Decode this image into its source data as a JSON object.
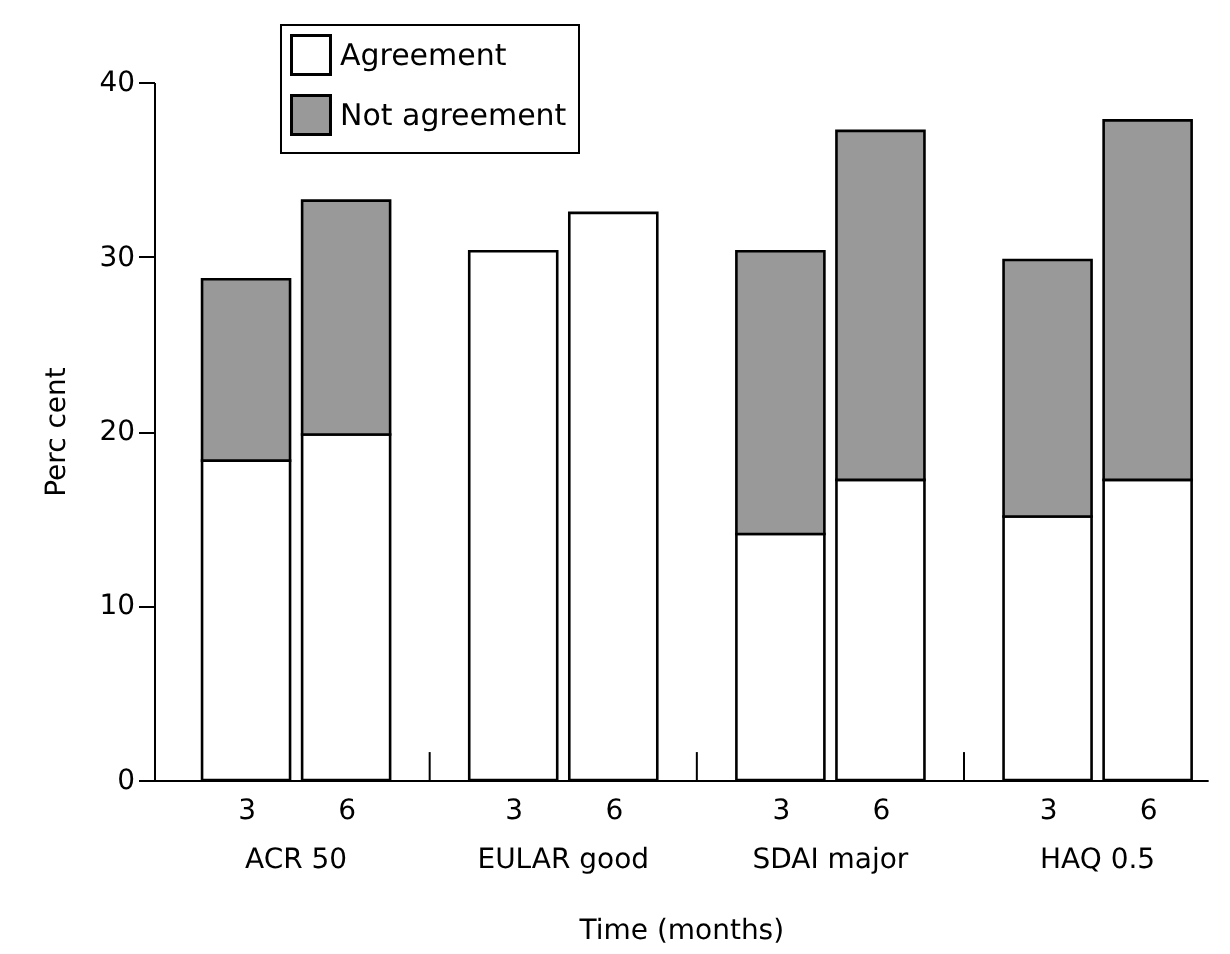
{
  "chart_data": {
    "type": "bar",
    "stacked": true,
    "xlabel": "Time (months)",
    "ylabel": "Perc cent",
    "categories": [
      "3",
      "6",
      "3",
      "6",
      "3",
      "6",
      "3",
      "6"
    ],
    "annotations": [
      "ACR 50",
      "EULAR good",
      "SDAI major",
      "HAQ 0.5"
    ],
    "series": [
      {
        "name": "Agreement",
        "color": "#ffffff",
        "values": [
          18.3,
          19.8,
          30.3,
          32.5,
          14.1,
          17.2,
          15.1,
          17.2
        ]
      },
      {
        "name": "Not agreement",
        "color": "#999999",
        "values": [
          10.4,
          13.4,
          null,
          null,
          16.2,
          20.0,
          14.7,
          20.6
        ]
      }
    ],
    "ylim": [
      0,
      40
    ],
    "yticks": [
      0,
      10,
      20,
      30,
      40
    ],
    "grid": false,
    "legend": "top left"
  }
}
